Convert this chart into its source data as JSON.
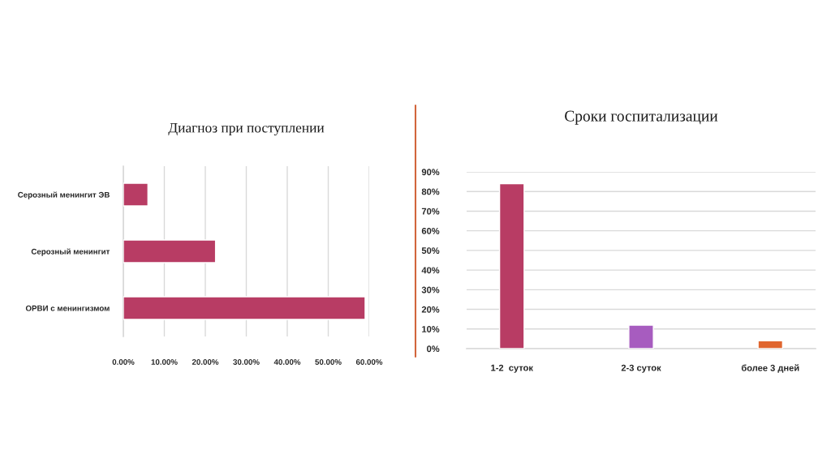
{
  "chart_data": [
    {
      "type": "bar",
      "orientation": "horizontal",
      "title": "Диагноз при поступлении",
      "categories": [
        "Серозный менингит ЭВ",
        "Серозный менингит",
        "ОРВИ с менингизмом"
      ],
      "values": [
        6,
        22.5,
        59
      ],
      "color": "#b83c64",
      "xlim": [
        0,
        60
      ],
      "xticks": [
        {
          "value": 0,
          "label": "0.00%"
        },
        {
          "value": 10,
          "label": "10.00%"
        },
        {
          "value": 20,
          "label": "20.00%"
        },
        {
          "value": 30,
          "label": "30.00%"
        },
        {
          "value": 40,
          "label": "40.00%"
        },
        {
          "value": 50,
          "label": "50.00%"
        },
        {
          "value": 60,
          "label": "60.00%"
        }
      ],
      "grid": "x"
    },
    {
      "type": "bar",
      "title": "Сроки госпитализации",
      "categories": [
        "1-2  суток",
        "2-3 суток",
        "более 3 дней"
      ],
      "values": [
        84,
        12,
        4
      ],
      "colors": [
        "#b83c64",
        "#a75cbf",
        "#e0662f"
      ],
      "ylim": [
        0,
        90
      ],
      "yticks": [
        {
          "value": 0,
          "label": "0%"
        },
        {
          "value": 10,
          "label": "10%"
        },
        {
          "value": 20,
          "label": "20%"
        },
        {
          "value": 30,
          "label": "30%"
        },
        {
          "value": 40,
          "label": "40%"
        },
        {
          "value": 50,
          "label": "50%"
        },
        {
          "value": 60,
          "label": "60%"
        },
        {
          "value": 70,
          "label": "70%"
        },
        {
          "value": 80,
          "label": "80%"
        },
        {
          "value": 90,
          "label": "90%"
        }
      ],
      "grid": "y"
    }
  ]
}
